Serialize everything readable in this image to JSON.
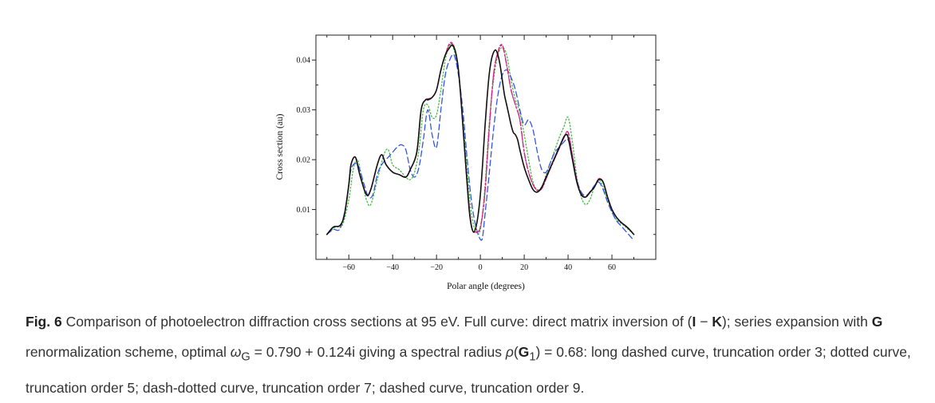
{
  "chart_data": {
    "type": "line",
    "title": "",
    "xlabel": "Polar angle  (degrees)",
    "ylabel": "Cross section  (au)",
    "xlim": [
      -75,
      80
    ],
    "ylim": [
      0,
      0.045
    ],
    "xticks": [
      -60,
      -40,
      -20,
      0,
      20,
      40,
      60
    ],
    "xtick_labels": [
      "−60",
      "−40",
      "−20",
      "0",
      "20",
      "40",
      "60"
    ],
    "yticks": [
      0.01,
      0.02,
      0.03,
      0.04
    ],
    "ytick_labels": [
      "0.01",
      "0.02",
      "0.03",
      "0.04"
    ],
    "grid": false,
    "legend": "none",
    "series": [
      {
        "style": "solid",
        "color": "#111111",
        "x": [
          -70,
          -67,
          -64,
          -62,
          -60,
          -59,
          -57,
          -55,
          -52,
          -50,
          -47,
          -45,
          -43,
          -40,
          -37,
          -34,
          -32,
          -29,
          -27,
          -25,
          -24,
          -22,
          -20,
          -18,
          -16,
          -14,
          -13,
          -12,
          -11,
          -10,
          -9,
          -8,
          -7,
          -6,
          -5,
          -4,
          -3,
          -2,
          -1,
          0,
          1,
          2,
          3,
          4,
          5,
          6,
          7,
          8,
          9,
          10,
          11,
          12,
          13,
          14,
          15,
          16,
          17,
          18,
          20,
          22,
          24,
          26,
          28,
          30,
          32,
          34,
          36,
          38,
          39,
          40,
          42,
          44,
          46,
          48,
          50,
          52,
          54,
          56,
          58,
          60,
          62,
          64,
          66,
          68,
          70
        ],
        "y": [
          0.005,
          0.0065,
          0.0068,
          0.009,
          0.015,
          0.019,
          0.0205,
          0.017,
          0.013,
          0.014,
          0.019,
          0.021,
          0.019,
          0.0175,
          0.017,
          0.0165,
          0.018,
          0.0215,
          0.03,
          0.032,
          0.032,
          0.0325,
          0.034,
          0.038,
          0.041,
          0.0425,
          0.043,
          0.0425,
          0.041,
          0.038,
          0.033,
          0.027,
          0.021,
          0.015,
          0.0095,
          0.0065,
          0.0055,
          0.0065,
          0.009,
          0.013,
          0.019,
          0.026,
          0.032,
          0.037,
          0.04,
          0.0415,
          0.042,
          0.041,
          0.039,
          0.036,
          0.033,
          0.031,
          0.029,
          0.027,
          0.0255,
          0.025,
          0.024,
          0.022,
          0.0185,
          0.016,
          0.014,
          0.0135,
          0.0145,
          0.0165,
          0.0185,
          0.0205,
          0.0225,
          0.0245,
          0.025,
          0.0245,
          0.02,
          0.0155,
          0.013,
          0.0125,
          0.0135,
          0.0145,
          0.016,
          0.0155,
          0.0125,
          0.01,
          0.0085,
          0.0075,
          0.0068,
          0.006,
          0.005
        ]
      },
      {
        "style": "dashed",
        "color": "#3355ee",
        "x": [
          -70,
          -67,
          -64,
          -61,
          -59,
          -56,
          -53,
          -51,
          -49,
          -47,
          -45,
          -42,
          -40,
          -38,
          -36,
          -34,
          -32,
          -30,
          -28,
          -26,
          -24,
          -22,
          -20,
          -18,
          -16,
          -14,
          -12,
          -10,
          -8,
          -6,
          -4,
          -2,
          0,
          1,
          2,
          4,
          6,
          8,
          10,
          12,
          14,
          16,
          18,
          20,
          22,
          24,
          26,
          28,
          30,
          32,
          34,
          36,
          38,
          40,
          42,
          44,
          46,
          48,
          50,
          52,
          54,
          56,
          58,
          60,
          62,
          64,
          66,
          68,
          70
        ],
        "y": [
          0.005,
          0.006,
          0.0062,
          0.0115,
          0.018,
          0.019,
          0.015,
          0.0125,
          0.013,
          0.017,
          0.019,
          0.0205,
          0.0215,
          0.0225,
          0.023,
          0.022,
          0.018,
          0.0165,
          0.0185,
          0.024,
          0.03,
          0.025,
          0.0225,
          0.03,
          0.037,
          0.04,
          0.041,
          0.037,
          0.03,
          0.02,
          0.0115,
          0.0065,
          0.004,
          0.0045,
          0.0085,
          0.017,
          0.026,
          0.033,
          0.037,
          0.038,
          0.0365,
          0.034,
          0.03,
          0.027,
          0.028,
          0.026,
          0.0215,
          0.018,
          0.0175,
          0.0195,
          0.0215,
          0.0225,
          0.0235,
          0.024,
          0.0205,
          0.016,
          0.0135,
          0.0128,
          0.0135,
          0.0148,
          0.0155,
          0.014,
          0.0115,
          0.0095,
          0.0078,
          0.0068,
          0.0058,
          0.0048,
          0.0038
        ]
      },
      {
        "style": "dotted",
        "color": "#44bb44",
        "x": [
          -70,
          -66,
          -63,
          -60,
          -58,
          -56,
          -54,
          -52,
          -50,
          -47,
          -44,
          -42,
          -40,
          -37,
          -34,
          -32,
          -30,
          -28,
          -26,
          -24,
          -22,
          -20,
          -18,
          -16,
          -14,
          -12,
          -10,
          -8,
          -6,
          -4,
          -2,
          0,
          2,
          4,
          6,
          8,
          10,
          12,
          14,
          16,
          18,
          20,
          22,
          24,
          26,
          28,
          30,
          32,
          34,
          36,
          38,
          40,
          42,
          44,
          46,
          48,
          50,
          52,
          54,
          56,
          58,
          60,
          62,
          64,
          66,
          68,
          70
        ],
        "y": [
          0.005,
          0.0065,
          0.0068,
          0.012,
          0.018,
          0.02,
          0.016,
          0.012,
          0.011,
          0.016,
          0.021,
          0.022,
          0.019,
          0.018,
          0.0165,
          0.016,
          0.0175,
          0.022,
          0.03,
          0.031,
          0.0285,
          0.029,
          0.034,
          0.04,
          0.043,
          0.042,
          0.0375,
          0.028,
          0.0175,
          0.009,
          0.0055,
          0.006,
          0.014,
          0.027,
          0.036,
          0.041,
          0.0425,
          0.041,
          0.036,
          0.032,
          0.0295,
          0.025,
          0.02,
          0.0155,
          0.014,
          0.0145,
          0.017,
          0.0195,
          0.022,
          0.0245,
          0.0265,
          0.0285,
          0.0235,
          0.0165,
          0.0125,
          0.011,
          0.012,
          0.0145,
          0.016,
          0.0145,
          0.012,
          0.0095,
          0.008,
          0.0073,
          0.0066,
          0.0058,
          0.005
        ]
      },
      {
        "style": "dash-dot",
        "color": "#dd2277",
        "x": [
          -70,
          -67,
          -64,
          -62,
          -60,
          -59,
          -57,
          -55,
          -52,
          -50,
          -47,
          -45,
          -43,
          -40,
          -37,
          -34,
          -32,
          -29,
          -27,
          -25,
          -22,
          -20,
          -18,
          -16,
          -14,
          -12,
          -10,
          -8,
          -6,
          -4,
          -2,
          0,
          2,
          4,
          6,
          8,
          10,
          12,
          14,
          16,
          18,
          20,
          22,
          24,
          26,
          28,
          30,
          32,
          34,
          36,
          38,
          40,
          42,
          44,
          46,
          48,
          50,
          52,
          54,
          56,
          58,
          60,
          62,
          64,
          66,
          68,
          70
        ],
        "y": [
          0.005,
          0.0065,
          0.0068,
          0.009,
          0.015,
          0.019,
          0.0205,
          0.017,
          0.013,
          0.014,
          0.019,
          0.021,
          0.019,
          0.0175,
          0.017,
          0.0165,
          0.018,
          0.0215,
          0.03,
          0.032,
          0.0325,
          0.034,
          0.038,
          0.041,
          0.0432,
          0.0425,
          0.038,
          0.027,
          0.015,
          0.0065,
          0.0055,
          0.0065,
          0.013,
          0.026,
          0.037,
          0.0415,
          0.0428,
          0.039,
          0.034,
          0.031,
          0.028,
          0.0215,
          0.0175,
          0.015,
          0.0138,
          0.0142,
          0.0162,
          0.0183,
          0.0203,
          0.0223,
          0.0243,
          0.0255,
          0.0208,
          0.0158,
          0.0132,
          0.0125,
          0.0134,
          0.0145,
          0.0162,
          0.0155,
          0.0125,
          0.0101,
          0.0085,
          0.0075,
          0.0068,
          0.006,
          0.005
        ]
      },
      {
        "style": "dashed-short",
        "color": "#aa33aa",
        "x": [
          -70,
          -67,
          -64,
          -62,
          -60,
          -59,
          -57,
          -55,
          -52,
          -50,
          -47,
          -45,
          -43,
          -40,
          -37,
          -34,
          -32,
          -29,
          -27,
          -25,
          -22,
          -20,
          -18,
          -16,
          -14,
          -12,
          -10,
          -8,
          -6,
          -4,
          -2,
          0,
          2,
          4,
          6,
          8,
          10,
          12,
          14,
          16,
          18,
          20,
          22,
          24,
          26,
          28,
          30,
          32,
          34,
          36,
          38,
          40,
          42,
          44,
          46,
          48,
          50,
          52,
          54,
          56,
          58,
          60,
          62,
          64,
          66,
          68,
          70
        ],
        "y": [
          0.005,
          0.0065,
          0.0068,
          0.009,
          0.015,
          0.019,
          0.0205,
          0.017,
          0.013,
          0.014,
          0.019,
          0.021,
          0.019,
          0.0175,
          0.017,
          0.0165,
          0.018,
          0.0215,
          0.03,
          0.032,
          0.0325,
          0.034,
          0.038,
          0.041,
          0.0434,
          0.0427,
          0.038,
          0.027,
          0.015,
          0.0065,
          0.0055,
          0.0065,
          0.013,
          0.026,
          0.037,
          0.0417,
          0.043,
          0.039,
          0.034,
          0.031,
          0.028,
          0.0215,
          0.0175,
          0.015,
          0.0138,
          0.0142,
          0.0162,
          0.0183,
          0.0203,
          0.0223,
          0.0243,
          0.0255,
          0.0208,
          0.0158,
          0.0132,
          0.0125,
          0.0134,
          0.0145,
          0.0162,
          0.0155,
          0.0125,
          0.0101,
          0.0085,
          0.0075,
          0.0068,
          0.006,
          0.005
        ]
      }
    ]
  },
  "caption": {
    "fig_label": "Fig. 6",
    "t1": " Comparison of photoelectron diffraction cross sections at 95 eV. Full curve: direct matrix inversion of (",
    "I": "I",
    "minus": " − ",
    "K": "K",
    "t2": "); series expansion with ",
    "G": "G",
    "t3": " renormalization scheme, optimal ",
    "omega": "ω",
    "omega_sub": "G",
    "t4": " = 0.790 + 0.124i giving a spectral radius ",
    "rho": "ρ",
    "t5": "(",
    "G1": "G",
    "G1_sub": "1",
    "t6": ") = 0.68: long dashed curve, truncation order 3; dotted curve, truncation order 5; dash-dotted curve, truncation order 7; dashed curve, truncation order 9."
  }
}
